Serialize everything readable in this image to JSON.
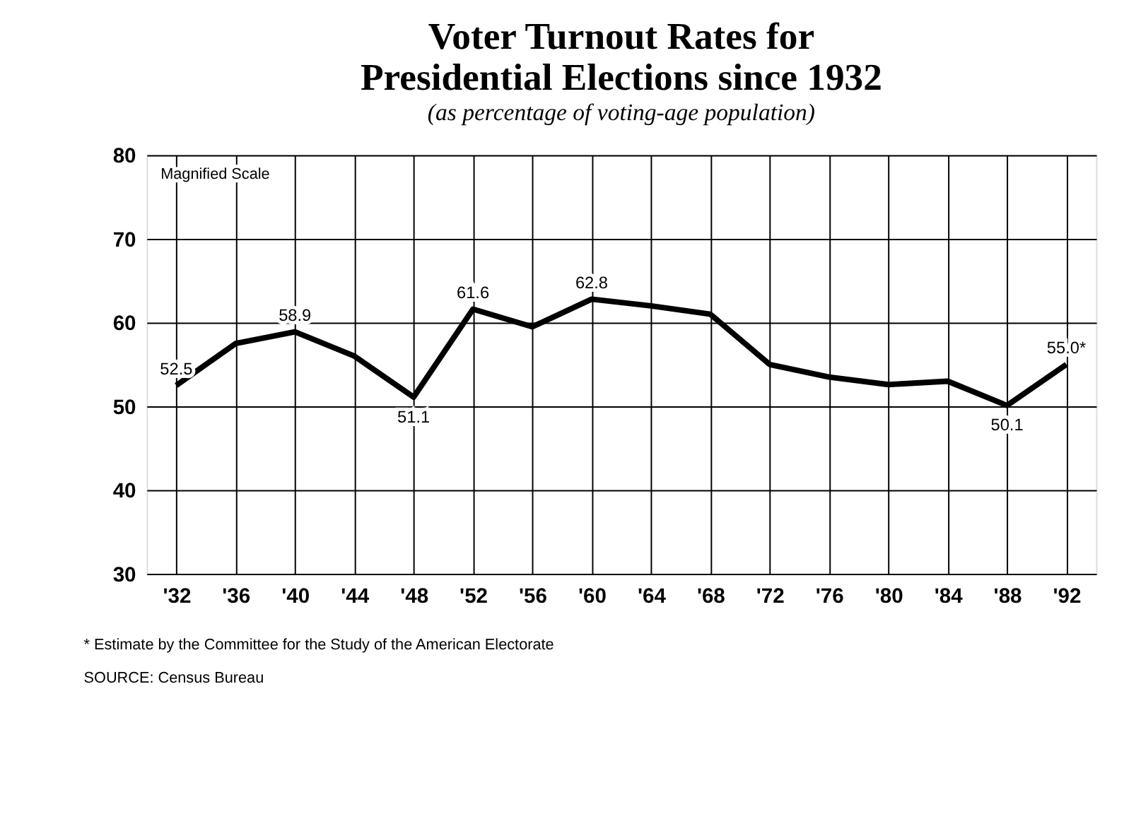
{
  "chart_data": {
    "type": "line",
    "title": "Voter Turnout Rates for Presidential Elections since 1932",
    "subtitle": "(as percentage of voting-age population)",
    "categories": [
      "'32",
      "'36",
      "'40",
      "'44",
      "'48",
      "'52",
      "'56",
      "'60",
      "'64",
      "'68",
      "'72",
      "'76",
      "'80",
      "'84",
      "'88",
      "'92"
    ],
    "series": [
      {
        "color": "#000000",
        "values": [
          52.5,
          57.5,
          58.9,
          56.0,
          51.1,
          61.6,
          59.5,
          62.8,
          62.0,
          61.0,
          55.0,
          53.5,
          52.6,
          53.0,
          50.1,
          55.0
        ],
        "value_labels": [
          "52.5",
          null,
          "58.9",
          null,
          "51.1",
          "61.6",
          null,
          "62.8",
          null,
          null,
          null,
          null,
          null,
          null,
          "50.1",
          "55.0*"
        ]
      }
    ],
    "ylim": [
      30,
      80
    ],
    "yticks": [
      30,
      40,
      50,
      60,
      70,
      80
    ],
    "grid": true,
    "marker": "none",
    "line_style": "solid",
    "annotations": [
      "Magnified Scale",
      "* Estimate by the Committee for the Study of the American Electorate",
      "SOURCE: Census Bureau"
    ]
  }
}
